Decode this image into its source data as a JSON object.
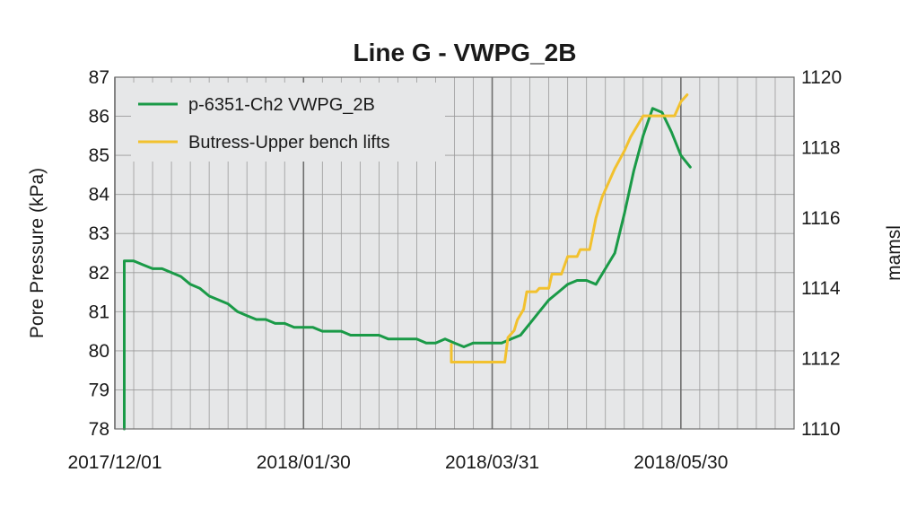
{
  "chart_data": {
    "type": "line",
    "title": "Line G - VWPG_2B",
    "ylabel": "Pore Pressure (kPa)",
    "y2label": "mamsl",
    "xlabel": "",
    "x_tick_labels": [
      "2017/12/01",
      "2018/01/30",
      "2018/03/31",
      "2018/05/30"
    ],
    "xlim": [
      "2017/12/01",
      "2018/07/05"
    ],
    "ylim": [
      78,
      87
    ],
    "y2lim": [
      1110,
      1120
    ],
    "y_ticks": [
      78,
      79,
      80,
      81,
      82,
      83,
      84,
      85,
      86,
      87
    ],
    "y2_ticks": [
      1110,
      1112,
      1114,
      1116,
      1118,
      1120
    ],
    "grid": true,
    "legend_position": "top-left",
    "colors": {
      "primary": "#1a9a47",
      "secondary": "#f2c12e",
      "plot_bg": "#e6e7e8",
      "grid_minor": "#9a9a9a",
      "grid_major": "#6e6e6e"
    },
    "series": [
      {
        "name": "p-6351-Ch2 VWPG_2B",
        "axis": "left",
        "color": "#1a9a47",
        "x": [
          "2017/12/04",
          "2017/12/04",
          "2017/12/07",
          "2017/12/10",
          "2017/12/13",
          "2017/12/16",
          "2017/12/19",
          "2017/12/22",
          "2017/12/25",
          "2017/12/28",
          "2017/12/31",
          "2018/01/03",
          "2018/01/06",
          "2018/01/09",
          "2018/01/12",
          "2018/01/15",
          "2018/01/18",
          "2018/01/21",
          "2018/01/24",
          "2018/01/27",
          "2018/01/30",
          "2018/02/02",
          "2018/02/05",
          "2018/02/08",
          "2018/02/11",
          "2018/02/14",
          "2018/02/17",
          "2018/02/20",
          "2018/02/23",
          "2018/02/26",
          "2018/03/01",
          "2018/03/04",
          "2018/03/07",
          "2018/03/10",
          "2018/03/13",
          "2018/03/16",
          "2018/03/19",
          "2018/03/22",
          "2018/03/25",
          "2018/03/28",
          "2018/03/31",
          "2018/04/03",
          "2018/04/06",
          "2018/04/09",
          "2018/04/12",
          "2018/04/15",
          "2018/04/18",
          "2018/04/21",
          "2018/04/24",
          "2018/04/27",
          "2018/04/30",
          "2018/05/03",
          "2018/05/06",
          "2018/05/09",
          "2018/05/12",
          "2018/05/15",
          "2018/05/18",
          "2018/05/21",
          "2018/05/24",
          "2018/05/27",
          "2018/05/30",
          "2018/06/02"
        ],
        "values": [
          78.0,
          82.3,
          82.3,
          82.2,
          82.1,
          82.1,
          82.0,
          81.9,
          81.7,
          81.6,
          81.4,
          81.3,
          81.2,
          81.0,
          80.9,
          80.8,
          80.8,
          80.7,
          80.7,
          80.6,
          80.6,
          80.6,
          80.5,
          80.5,
          80.5,
          80.4,
          80.4,
          80.4,
          80.4,
          80.3,
          80.3,
          80.3,
          80.3,
          80.2,
          80.2,
          80.3,
          80.2,
          80.1,
          80.2,
          80.2,
          80.2,
          80.2,
          80.3,
          80.4,
          80.7,
          81.0,
          81.3,
          81.5,
          81.7,
          81.8,
          81.8,
          81.7,
          82.1,
          82.5,
          83.5,
          84.6,
          85.5,
          86.2,
          86.1,
          85.6,
          85.0,
          84.7
        ]
      },
      {
        "name": "Butress-Upper bench lifts",
        "axis": "right",
        "color": "#f2c12e",
        "x": [
          "2018/03/18",
          "2018/03/18",
          "2018/03/26",
          "2018/04/04",
          "2018/04/05",
          "2018/04/07",
          "2018/04/08",
          "2018/04/10",
          "2018/04/11",
          "2018/04/14",
          "2018/04/15",
          "2018/04/18",
          "2018/04/19",
          "2018/04/22",
          "2018/04/24",
          "2018/04/27",
          "2018/04/28",
          "2018/05/01",
          "2018/05/03",
          "2018/05/05",
          "2018/05/07",
          "2018/05/09",
          "2018/05/12",
          "2018/05/14",
          "2018/05/18",
          "2018/05/20",
          "2018/05/22",
          "2018/05/28",
          "2018/05/30",
          "2018/06/01"
        ],
        "values": [
          1112.4,
          1111.9,
          1111.9,
          1111.9,
          1112.6,
          1112.8,
          1113.1,
          1113.4,
          1113.9,
          1113.9,
          1114.0,
          1114.0,
          1114.4,
          1114.4,
          1114.9,
          1114.9,
          1115.1,
          1115.1,
          1116.0,
          1116.6,
          1117.0,
          1117.4,
          1117.9,
          1118.3,
          1118.9,
          1118.9,
          1118.9,
          1118.9,
          1119.3,
          1119.5
        ]
      }
    ]
  }
}
